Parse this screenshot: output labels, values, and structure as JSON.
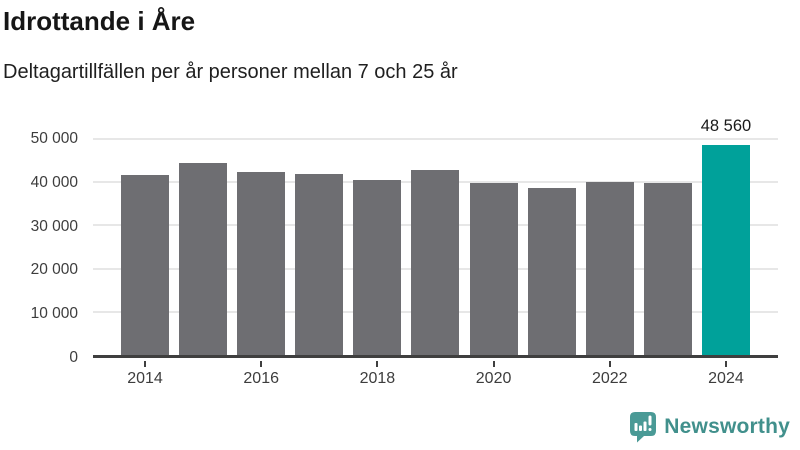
{
  "header": {
    "title": "Idrottande i Åre",
    "subtitle": "Deltagartillfällen per år personer mellan 7 och 25 år"
  },
  "chart_data": {
    "type": "bar",
    "title": "Idrottande i Åre",
    "subtitle": "Deltagartillfällen per år personer mellan 7 och 25 år",
    "categories": [
      "2014",
      "2015",
      "2016",
      "2017",
      "2018",
      "2019",
      "2020",
      "2021",
      "2022",
      "2023",
      "2024"
    ],
    "values": [
      41600,
      44500,
      42400,
      41900,
      40600,
      42800,
      39900,
      38700,
      40000,
      39900,
      48560
    ],
    "highlight_index": 10,
    "highlight_value_label": "48 560",
    "ylim": [
      0,
      50000
    ],
    "y_ticks": [
      0,
      10000,
      20000,
      30000,
      40000,
      50000
    ],
    "y_tick_labels": [
      "0",
      "10 000",
      "20 000",
      "30 000",
      "40 000",
      "50 000"
    ],
    "x_tick_labels": [
      "2014",
      "2016",
      "2018",
      "2020",
      "2022",
      "2024"
    ],
    "grid": true,
    "legend": "none",
    "colors": {
      "bar": "#6e6e72",
      "highlight": "#00a19a",
      "gridline": "#e7e7e7",
      "axis": "#3f3f3f",
      "tick_label": "#3d3d3d",
      "value_label": "#1a1a1a"
    }
  },
  "footer": {
    "brand": "Newsworthy",
    "logo_icon": "newsworthy-speech-bubble-chart-icon",
    "icon_color": "#4a9a96",
    "text_color": "#41908c"
  }
}
